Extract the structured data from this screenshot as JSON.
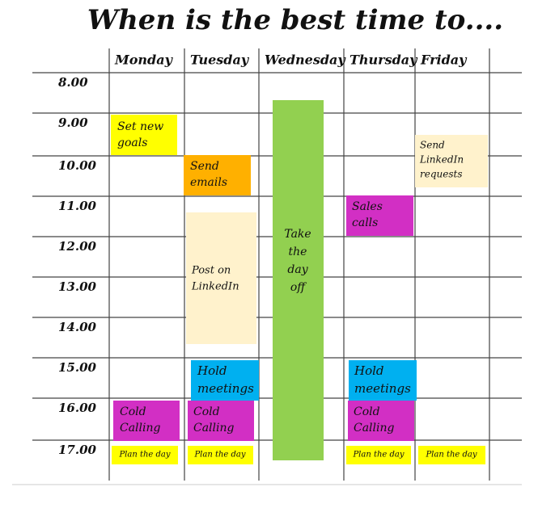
{
  "title": "When is the best time to....",
  "days": [
    "Monday",
    "Tuesday",
    "Wednesday",
    "Thursday",
    "Friday"
  ],
  "times": [
    "8.00",
    "9.00",
    "10.00",
    "11.00",
    "12.00",
    "13.00",
    "14.00",
    "15.00",
    "16.00",
    "17.00"
  ],
  "events": [
    {
      "lines": [
        "Set new",
        "goals"
      ]
    },
    {
      "lines": [
        "Send",
        "emails"
      ]
    },
    {
      "lines": [
        "Post on",
        "LinkedIn"
      ]
    },
    {
      "lines": [
        "Take",
        "the",
        "day",
        "off"
      ]
    },
    {
      "lines": [
        "Sales",
        "calls"
      ]
    },
    {
      "lines": [
        "Send",
        "LinkedIn",
        "requests"
      ]
    },
    {
      "lines": [
        "Hold",
        "meetings"
      ]
    },
    {
      "lines": [
        "Hold",
        "meetings"
      ]
    },
    {
      "lines": [
        "Cold",
        "Calling"
      ]
    },
    {
      "lines": [
        "Cold",
        "Calling"
      ]
    },
    {
      "lines": [
        "Cold",
        "Calling"
      ]
    },
    {
      "lines": [
        "Plan the day"
      ]
    },
    {
      "lines": [
        "Plan the day"
      ]
    },
    {
      "lines": [
        "Plan the day"
      ]
    },
    {
      "lines": [
        "Plan the day"
      ]
    }
  ]
}
